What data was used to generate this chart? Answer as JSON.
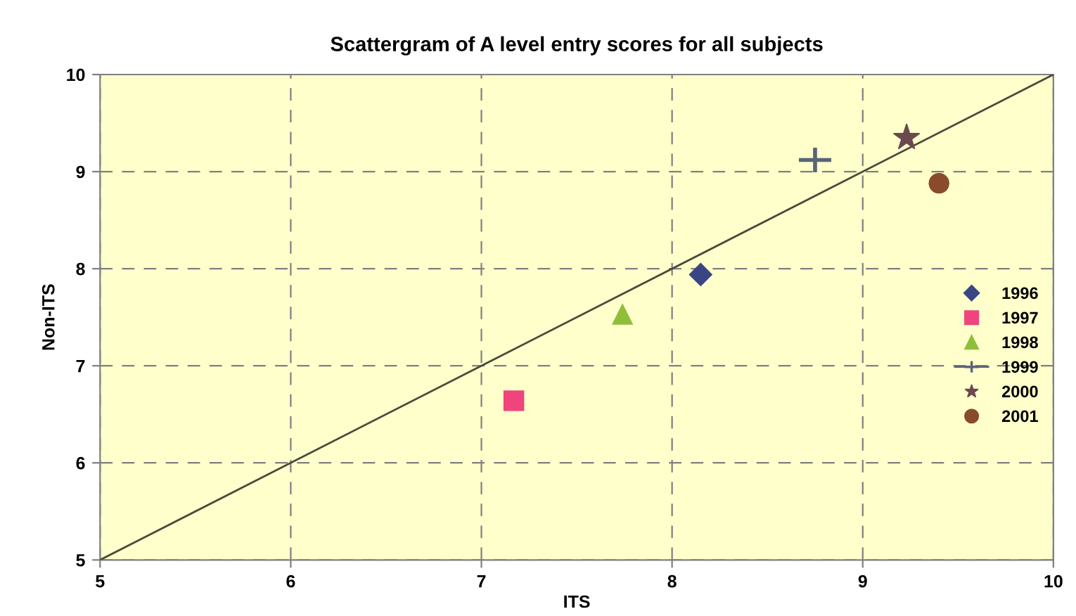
{
  "chart_data": {
    "type": "scatter",
    "title": "Scattergram of A level entry scores for all subjects",
    "xlabel": "ITS",
    "ylabel": "Non-ITS",
    "xlim": [
      5,
      10
    ],
    "ylim": [
      5,
      10
    ],
    "xticks": [
      5,
      6,
      7,
      8,
      9,
      10
    ],
    "yticks": [
      5,
      6,
      7,
      8,
      9,
      10
    ],
    "grid": true,
    "legend": "right",
    "series": [
      {
        "name": "1996",
        "color": "#3a4684",
        "marker": "diamond",
        "x": [
          8.15
        ],
        "values": [
          7.94
        ]
      },
      {
        "name": "1997",
        "color": "#f0447c",
        "marker": "square",
        "x": [
          7.17
        ],
        "values": [
          6.64
        ]
      },
      {
        "name": "1998",
        "color": "#8fbf3a",
        "marker": "triangle",
        "x": [
          7.74
        ],
        "values": [
          7.53
        ]
      },
      {
        "name": "1999",
        "type": "line",
        "line_style": "solid",
        "color": "#5a6478",
        "marker": "cross",
        "x": [
          8.75
        ],
        "values": [
          9.12
        ]
      },
      {
        "name": "2000",
        "color": "#6a4a4e",
        "marker": "star",
        "x": [
          9.23
        ],
        "values": [
          9.35
        ]
      },
      {
        "name": "2001",
        "color": "#8a4a2c",
        "marker": "circle",
        "x": [
          9.4
        ],
        "values": [
          8.88
        ]
      },
      {
        "type": "line",
        "line_style": "solid",
        "marker": "none",
        "color": "#4a4a3a",
        "x": [
          5,
          10
        ],
        "values": [
          5,
          10
        ]
      }
    ]
  }
}
